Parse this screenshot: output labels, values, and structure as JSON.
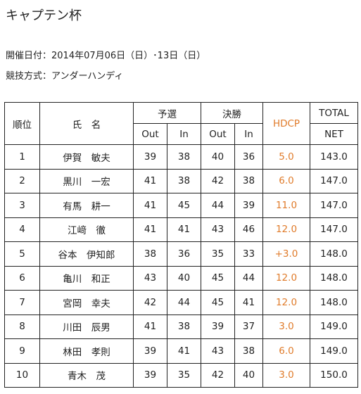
{
  "title": "キャプテン杯",
  "event_date": "開催日付：2014年07月06日（日）･13日（日）",
  "competition_format": "競技方式：アンダーハンディ",
  "table": {
    "headers": {
      "rank": "順位",
      "name": "氏　名",
      "prelim": "予選",
      "final": "決勝",
      "out": "Out",
      "in": "In",
      "hdcp": "HDCP",
      "total": "TOTAL",
      "net": "NET"
    },
    "rows": [
      {
        "rank": "1",
        "name": "伊賀　敏夫",
        "prelim_out": "39",
        "prelim_in": "38",
        "final_out": "40",
        "final_in": "36",
        "hdcp": "5.0",
        "net": "143.0"
      },
      {
        "rank": "2",
        "name": "黒川　一宏",
        "prelim_out": "41",
        "prelim_in": "38",
        "final_out": "42",
        "final_in": "38",
        "hdcp": "6.0",
        "net": "147.0"
      },
      {
        "rank": "3",
        "name": "有馬　耕一",
        "prelim_out": "41",
        "prelim_in": "45",
        "final_out": "44",
        "final_in": "39",
        "hdcp": "11.0",
        "net": "147.0"
      },
      {
        "rank": "4",
        "name": "江﨑　徹",
        "prelim_out": "41",
        "prelim_in": "41",
        "final_out": "43",
        "final_in": "46",
        "hdcp": "12.0",
        "net": "147.0"
      },
      {
        "rank": "5",
        "name": "谷本　伊知郎",
        "prelim_out": "38",
        "prelim_in": "36",
        "final_out": "35",
        "final_in": "33",
        "hdcp": "+3.0",
        "net": "148.0"
      },
      {
        "rank": "6",
        "name": "亀川　和正",
        "prelim_out": "43",
        "prelim_in": "40",
        "final_out": "45",
        "final_in": "44",
        "hdcp": "12.0",
        "net": "148.0"
      },
      {
        "rank": "7",
        "name": "宮岡　幸夫",
        "prelim_out": "42",
        "prelim_in": "44",
        "final_out": "45",
        "final_in": "41",
        "hdcp": "12.0",
        "net": "148.0"
      },
      {
        "rank": "8",
        "name": "川田　辰男",
        "prelim_out": "41",
        "prelim_in": "38",
        "final_out": "39",
        "final_in": "37",
        "hdcp": "3.0",
        "net": "149.0"
      },
      {
        "rank": "9",
        "name": "林田　孝則",
        "prelim_out": "39",
        "prelim_in": "41",
        "final_out": "43",
        "final_in": "38",
        "hdcp": "6.0",
        "net": "149.0"
      },
      {
        "rank": "10",
        "name": "青木　茂",
        "prelim_out": "39",
        "prelim_in": "35",
        "final_out": "42",
        "final_in": "40",
        "hdcp": "3.0",
        "net": "150.0"
      }
    ]
  },
  "colors": {
    "hdcp_text": "#e07b2a",
    "border": "#222222"
  }
}
